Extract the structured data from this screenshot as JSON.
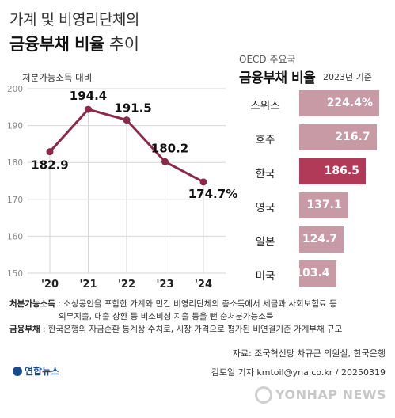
{
  "title": {
    "line1": "가계 및 비영리단체의",
    "line2_bold": "금융부채 비율",
    "line2_light": " 추이"
  },
  "chart_data": [
    {
      "type": "line",
      "ylabel": "처분가능소득 대비",
      "x": [
        "'20",
        "'21",
        "'22",
        "'23",
        "'24"
      ],
      "values": [
        182.9,
        194.4,
        191.5,
        180.2,
        174.7
      ],
      "value_labels": [
        "182.9",
        "194.4",
        "191.5",
        "180.2",
        "174.7%"
      ],
      "ylim": [
        150,
        200
      ],
      "yticks": [
        150,
        160,
        170,
        180,
        190,
        200
      ],
      "color": "#8b2a48"
    },
    {
      "type": "bar",
      "orientation": "horizontal",
      "subtitle": "OECD 주요국",
      "title": "금융부채 비율",
      "note": "2023년 기준",
      "categories": [
        "스위스",
        "호주",
        "한국",
        "영국",
        "일본",
        "미국"
      ],
      "values": [
        224.4,
        216.7,
        186.5,
        137.1,
        124.7,
        103.4
      ],
      "value_labels": [
        "224.4%",
        "216.7",
        "186.5",
        "137.1",
        "124.7",
        "103.4"
      ],
      "highlight": "한국",
      "colors": {
        "bar": "#c79aa6",
        "highlight": "#b13a59"
      }
    }
  ],
  "notes": {
    "term1": "처분가능소득",
    "text1": " : 소상공인을 포함한 가계와 민간 비영리단체의 총소득에서 세금과 사회보험료 등",
    "text1b": "의무지출, 대출 상환 등 비소비성 지출 등을 뺀 순처분가능소득",
    "term2": "금융부채",
    "text2": " : 한국은행의 자금순환 통계상 수치로, 시장 가격으로 평가된 비연결기준 가계부채 규모"
  },
  "source": "자료: 조국혁신당 차규근 의원실, 한국은행",
  "reporter": "김토일 기자 kmtoil@yna.co.kr / 20250319",
  "logo": "연합뉴스",
  "watermark": "YONHAP NEWS"
}
